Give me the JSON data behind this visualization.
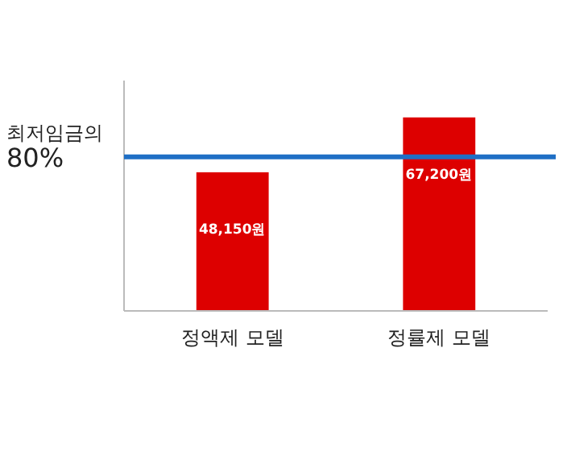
{
  "chart_data": {
    "type": "bar",
    "categories": [
      "정액제 모델",
      "정률제 모델"
    ],
    "values": [
      48150,
      67200
    ],
    "color": "#dd0000",
    "value_labels": [
      "48,150원",
      "67,200원"
    ],
    "ylim": [
      0,
      80000
    ],
    "tick_labels": "x",
    "ref_lines": [
      {
        "axis": "y",
        "value": 53500,
        "label": "최저임금의 80%",
        "color": "#1f6fc5"
      }
    ]
  }
}
